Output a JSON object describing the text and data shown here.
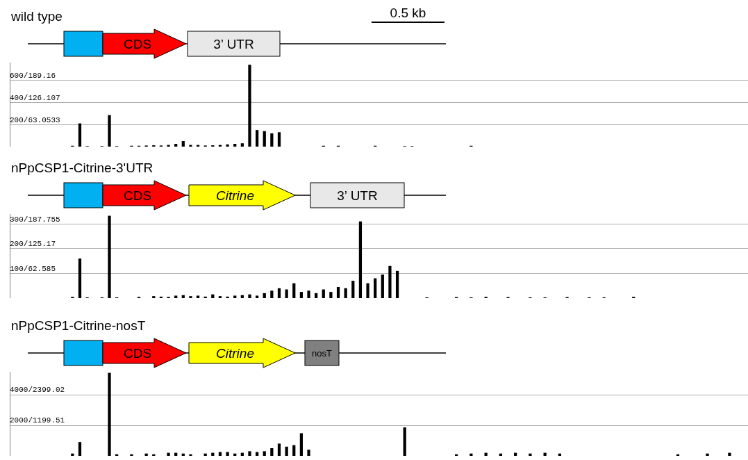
{
  "chart_data": [
    {
      "type": "bar",
      "title": "wild type",
      "annotations": [
        "CDS",
        "3’ UTR",
        "0.5 kb"
      ],
      "categories": [
        null,
        null,
        null,
        null,
        null,
        null,
        null,
        null,
        null,
        null,
        null,
        null,
        null,
        null,
        null,
        null,
        null,
        null,
        null,
        null,
        null,
        null,
        null,
        null,
        null,
        null,
        null,
        null,
        null,
        null,
        null,
        null,
        null,
        null,
        null,
        null,
        null,
        null,
        null,
        null,
        null,
        null,
        null,
        null,
        null,
        null,
        null,
        null,
        null,
        null,
        null,
        null,
        null,
        null,
        null,
        null,
        null,
        null,
        null,
        null,
        null,
        null,
        null,
        null,
        null,
        null,
        null,
        null,
        null,
        null,
        null,
        null,
        null,
        null,
        null,
        null,
        null,
        null,
        null,
        null,
        null,
        null,
        null,
        null,
        null,
        null,
        null,
        null,
        null,
        null,
        null,
        null,
        null,
        null,
        null,
        null,
        null,
        null,
        null,
        null
      ],
      "values": [
        0,
        0,
        0,
        0,
        0,
        0,
        0,
        0,
        8,
        210,
        5,
        0,
        5,
        285,
        5,
        0,
        8,
        8,
        10,
        12,
        10,
        15,
        25,
        50,
        15,
        15,
        10,
        12,
        15,
        20,
        25,
        30,
        740,
        150,
        140,
        120,
        130,
        0,
        0,
        0,
        0,
        0,
        8,
        0,
        8,
        0,
        0,
        0,
        0,
        8,
        0,
        0,
        0,
        5,
        5,
        0,
        0,
        0,
        0,
        0,
        0,
        0,
        8,
        0,
        0,
        0,
        0,
        0,
        0,
        0,
        0,
        0,
        0,
        0,
        0,
        0,
        0,
        0,
        0,
        0,
        0,
        0,
        0,
        0,
        0,
        0,
        0,
        0,
        0,
        0,
        0,
        0,
        0,
        0,
        0,
        0,
        0,
        0,
        0,
        0
      ],
      "color": "#000000",
      "ylim": [
        0,
        760
      ],
      "yticks": [
        200,
        400,
        600
      ],
      "y2lim": [
        0,
        239.6
      ],
      "y2ticks": [
        {
          "value": 63.0533,
          "label": "/63.0533"
        },
        {
          "value": 126.107,
          "label": "/126.107"
        },
        {
          "value": 189.16,
          "label": "/189.16"
        }
      ],
      "grid": "y",
      "tick_labels": "y"
    },
    {
      "type": "bar",
      "title": "nPpCSP1-Citrine-3'UTR",
      "annotations": [
        "CDS",
        "Citrine",
        "3’ UTR"
      ],
      "categories": [
        null,
        null,
        null,
        null,
        null,
        null,
        null,
        null,
        null,
        null,
        null,
        null,
        null,
        null,
        null,
        null,
        null,
        null,
        null,
        null,
        null,
        null,
        null,
        null,
        null,
        null,
        null,
        null,
        null,
        null,
        null,
        null,
        null,
        null,
        null,
        null,
        null,
        null,
        null,
        null,
        null,
        null,
        null,
        null,
        null,
        null,
        null,
        null,
        null,
        null,
        null,
        null,
        null,
        null,
        null,
        null,
        null,
        null,
        null,
        null,
        null,
        null,
        null,
        null,
        null,
        null,
        null,
        null,
        null,
        null,
        null,
        null,
        null,
        null,
        null,
        null,
        null,
        null,
        null,
        null,
        null,
        null,
        null,
        null,
        null,
        null,
        null,
        null,
        null,
        null,
        null,
        null,
        null,
        null,
        null,
        null,
        null,
        null,
        null,
        null
      ],
      "values": [
        0,
        0,
        0,
        0,
        0,
        0,
        0,
        0,
        5,
        160,
        3,
        0,
        3,
        333,
        3,
        0,
        0,
        5,
        0,
        8,
        6,
        5,
        10,
        12,
        8,
        10,
        6,
        15,
        8,
        6,
        10,
        12,
        15,
        10,
        20,
        30,
        40,
        35,
        60,
        25,
        30,
        20,
        35,
        25,
        45,
        40,
        70,
        310,
        60,
        80,
        95,
        130,
        110,
        0,
        0,
        0,
        3,
        0,
        0,
        0,
        4,
        0,
        3,
        0,
        5,
        0,
        0,
        4,
        0,
        0,
        3,
        0,
        3,
        0,
        0,
        4,
        0,
        0,
        3,
        0,
        3,
        0,
        0,
        0,
        5,
        0,
        0,
        0,
        0,
        0,
        0,
        0,
        0,
        0,
        0,
        0,
        0,
        0,
        0,
        0
      ],
      "color": "#000000",
      "ylim": [
        0,
        340
      ],
      "yticks": [
        100,
        200,
        300
      ],
      "y2lim": [
        0,
        212.79
      ],
      "y2ticks": [
        {
          "value": 62.585,
          "label": "/62.585"
        },
        {
          "value": 125.17,
          "label": "/125.17"
        },
        {
          "value": 187.755,
          "label": "/187.755"
        }
      ],
      "grid": "y",
      "tick_labels": "y"
    },
    {
      "type": "bar",
      "title": "nPpCSP1-Citrine-nosT",
      "annotations": [
        "CDS",
        "Citrine",
        "nosT"
      ],
      "categories": [
        null,
        null,
        null,
        null,
        null,
        null,
        null,
        null,
        null,
        null,
        null,
        null,
        null,
        null,
        null,
        null,
        null,
        null,
        null,
        null,
        null,
        null,
        null,
        null,
        null,
        null,
        null,
        null,
        null,
        null,
        null,
        null,
        null,
        null,
        null,
        null,
        null,
        null,
        null,
        null,
        null,
        null,
        null,
        null,
        null,
        null,
        null,
        null,
        null,
        null,
        null,
        null,
        null,
        null,
        null,
        null,
        null,
        null,
        null,
        null,
        null,
        null,
        null,
        null,
        null,
        null,
        null,
        null,
        null,
        null,
        null,
        null,
        null,
        null,
        null,
        null,
        null,
        null,
        null,
        null,
        null,
        null,
        null,
        null,
        null,
        null,
        null,
        null,
        null,
        null,
        null,
        null,
        null,
        null,
        null,
        null,
        null,
        null,
        null,
        null
      ],
      "values": [
        0,
        0,
        0,
        0,
        0,
        0,
        0,
        0,
        150,
        900,
        0,
        0,
        0,
        5430,
        100,
        0,
        100,
        0,
        150,
        100,
        0,
        200,
        200,
        150,
        100,
        0,
        150,
        200,
        250,
        250,
        150,
        200,
        300,
        250,
        300,
        500,
        800,
        600,
        700,
        1480,
        400,
        0,
        0,
        0,
        0,
        0,
        0,
        0,
        0,
        0,
        0,
        0,
        0,
        1860,
        0,
        0,
        0,
        0,
        0,
        0,
        100,
        0,
        150,
        0,
        200,
        0,
        150,
        0,
        200,
        0,
        150,
        0,
        200,
        0,
        150,
        0,
        0,
        0,
        0,
        0,
        0,
        0,
        0,
        0,
        0,
        0,
        0,
        0,
        0,
        0,
        100,
        0,
        0,
        0,
        150,
        0,
        0,
        200,
        0,
        0
      ],
      "color": "#000000",
      "ylim": [
        0,
        5500
      ],
      "yticks": [
        2000,
        4000
      ],
      "y2lim": [
        0,
        3298.65
      ],
      "y2ticks": [
        {
          "value": 1199.51,
          "label": "/1199.51"
        },
        {
          "value": 2399.02,
          "label": "/2399.02"
        }
      ],
      "grid": "y",
      "tick_labels": "y"
    }
  ]
}
